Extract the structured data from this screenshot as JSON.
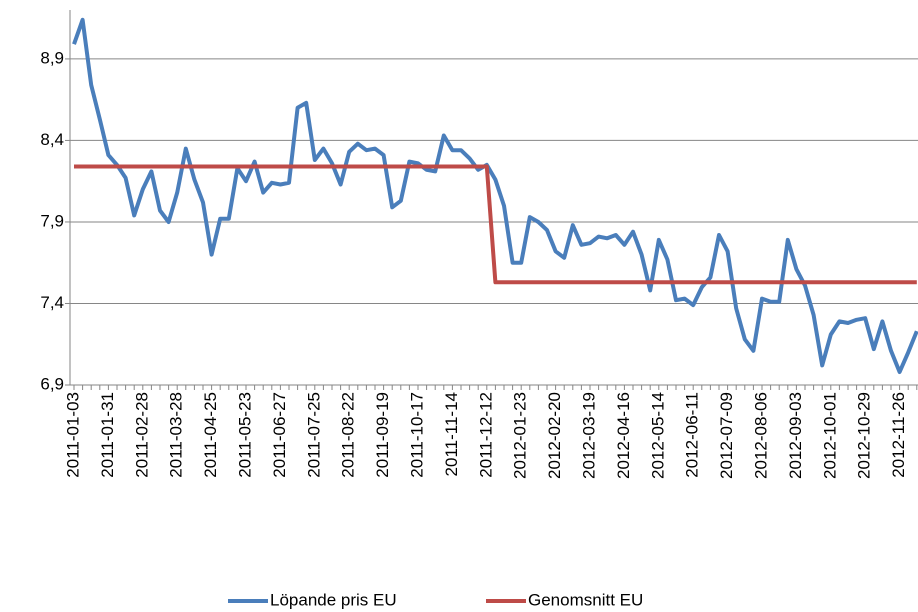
{
  "chart_data": {
    "type": "line",
    "categories": [
      "2011-01-03",
      null,
      null,
      null,
      "2011-01-31",
      null,
      null,
      null,
      "2011-02-28",
      null,
      null,
      null,
      "2011-03-28",
      null,
      null,
      null,
      "2011-04-25",
      null,
      null,
      null,
      "2011-05-23",
      null,
      null,
      null,
      "2011-06-27",
      null,
      null,
      null,
      "2011-07-25",
      null,
      null,
      null,
      "2011-08-22",
      null,
      null,
      null,
      "2011-09-19",
      null,
      null,
      null,
      "2011-10-17",
      null,
      null,
      null,
      "2011-11-14",
      null,
      null,
      null,
      "2011-12-12",
      null,
      null,
      null,
      "2012-01-23",
      null,
      null,
      null,
      "2012-02-20",
      null,
      null,
      null,
      "2012-03-19",
      null,
      null,
      null,
      "2012-04-16",
      null,
      null,
      null,
      "2012-05-14",
      null,
      null,
      null,
      "2012-06-11",
      null,
      null,
      null,
      "2012-07-09",
      null,
      null,
      null,
      "2012-08-06",
      null,
      null,
      null,
      "2012-09-03",
      null,
      null,
      null,
      "2012-10-01",
      null,
      null,
      null,
      "2012-10-29",
      null,
      null,
      null,
      "2012-11-26",
      null,
      null
    ],
    "series": [
      {
        "name": "Löpande pris EU",
        "color": "#4a7ebb",
        "values": [
          8.99,
          9.14,
          8.74,
          8.53,
          8.31,
          8.25,
          8.17,
          7.94,
          8.1,
          8.21,
          7.97,
          7.9,
          8.08,
          8.35,
          8.16,
          8.02,
          7.7,
          7.92,
          7.92,
          8.23,
          8.15,
          8.27,
          8.08,
          8.14,
          8.13,
          8.14,
          8.6,
          8.63,
          8.28,
          8.35,
          8.26,
          8.13,
          8.33,
          8.38,
          8.34,
          8.35,
          8.31,
          7.99,
          8.03,
          8.27,
          8.26,
          8.22,
          8.21,
          8.43,
          8.34,
          8.34,
          8.29,
          8.22,
          8.25,
          8.16,
          8.0,
          7.65,
          7.65,
          7.93,
          7.9,
          7.85,
          7.72,
          7.68,
          7.88,
          7.76,
          7.77,
          7.81,
          7.8,
          7.82,
          7.76,
          7.84,
          7.7,
          7.48,
          7.79,
          7.67,
          7.42,
          7.43,
          7.39,
          7.5,
          7.56,
          7.82,
          7.72,
          7.37,
          7.18,
          7.11,
          7.43,
          7.41,
          7.41,
          7.79,
          7.61,
          7.51,
          7.33,
          7.02,
          7.21,
          7.29,
          7.28,
          7.3,
          7.31,
          7.12,
          7.29,
          7.11,
          6.98,
          7.1,
          7.23
        ]
      },
      {
        "name": "Genomsnitt EU",
        "color": "#be4b48",
        "values": [
          8.24,
          8.24,
          8.24,
          8.24,
          8.24,
          8.24,
          8.24,
          8.24,
          8.24,
          8.24,
          8.24,
          8.24,
          8.24,
          8.24,
          8.24,
          8.24,
          8.24,
          8.24,
          8.24,
          8.24,
          8.24,
          8.24,
          8.24,
          8.24,
          8.24,
          8.24,
          8.24,
          8.24,
          8.24,
          8.24,
          8.24,
          8.24,
          8.24,
          8.24,
          8.24,
          8.24,
          8.24,
          8.24,
          8.24,
          8.24,
          8.24,
          8.24,
          8.24,
          8.24,
          8.24,
          8.24,
          8.24,
          8.24,
          8.24,
          7.53,
          7.53,
          7.53,
          7.53,
          7.53,
          7.53,
          7.53,
          7.53,
          7.53,
          7.53,
          7.53,
          7.53,
          7.53,
          7.53,
          7.53,
          7.53,
          7.53,
          7.53,
          7.53,
          7.53,
          7.53,
          7.53,
          7.53,
          7.53,
          7.53,
          7.53,
          7.53,
          7.53,
          7.53,
          7.53,
          7.53,
          7.53,
          7.53,
          7.53,
          7.53,
          7.53,
          7.53,
          7.53,
          7.53,
          7.53,
          7.53,
          7.53,
          7.53,
          7.53,
          7.53,
          7.53,
          7.53,
          7.53,
          7.53,
          7.53
        ]
      }
    ],
    "ylim": [
      6.9,
      9.2
    ],
    "yticks": [
      {
        "value": 6.9,
        "label": "6,9"
      },
      {
        "value": 7.4,
        "label": "7,4"
      },
      {
        "value": 7.9,
        "label": "7,9"
      },
      {
        "value": 8.4,
        "label": "8,4"
      },
      {
        "value": 8.9,
        "label": "8,9"
      }
    ],
    "grid": true,
    "legend": "bottom"
  }
}
